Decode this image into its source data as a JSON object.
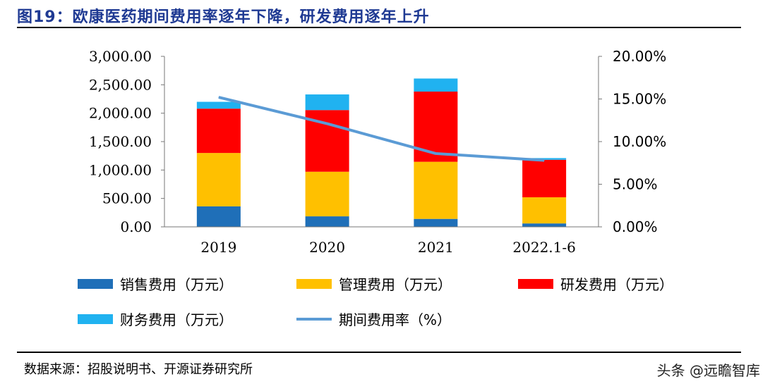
{
  "title": "图19：欧康医药期间费用率逐年下降，研发费用逐年上升",
  "source": "数据来源：招股说明书、开源证券研究所",
  "watermark": "头条 @远瞻智库",
  "chart_data": {
    "type": "bar",
    "stacked": true,
    "categories": [
      "2019",
      "2020",
      "2021",
      "2022.1-6"
    ],
    "series": [
      {
        "name": "销售费用（万元）",
        "color": "#1f6fb8",
        "values": [
          360,
          185,
          140,
          60
        ]
      },
      {
        "name": "管理费用（万元）",
        "color": "#ffc000",
        "values": [
          940,
          785,
          1005,
          460
        ]
      },
      {
        "name": "研发费用（万元）",
        "color": "#ff0000",
        "values": [
          780,
          1085,
          1235,
          660
        ]
      },
      {
        "name": "财务费用（万元）",
        "color": "#20b2f0",
        "values": [
          120,
          275,
          230,
          30
        ]
      }
    ],
    "line_series": {
      "name": "期间费用率（%）",
      "color": "#5b9bd5",
      "values": [
        15.2,
        12.1,
        8.6,
        7.8
      ]
    },
    "y_left": {
      "min": 0,
      "max": 3000,
      "ticks": [
        "0.00",
        "500.00",
        "1,000.00",
        "1,500.00",
        "2,000.00",
        "2,500.00",
        "3,000.00"
      ]
    },
    "y_right": {
      "min": 0,
      "max": 20,
      "ticks": [
        "0.00%",
        "5.00%",
        "10.00%",
        "15.00%",
        "20.00%"
      ]
    },
    "xlabel": "",
    "ylabel": ""
  }
}
